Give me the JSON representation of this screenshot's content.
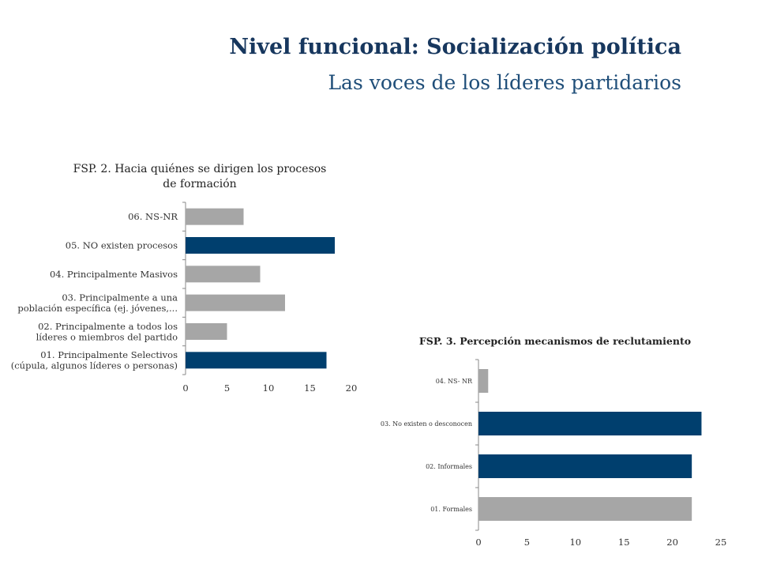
{
  "page": {
    "title": "Nivel funcional: Socialización política",
    "subtitle": "Las voces de los líderes partidarios"
  },
  "colors": {
    "highlight": "#003f6e",
    "normal": "#a6a6a6",
    "title": "#17375e"
  },
  "chart_data": [
    {
      "type": "bar",
      "orientation": "horizontal",
      "title": "FSP. 2.  Hacia quiénes se dirigen los procesos de formación",
      "title_lines": [
        "FSP. 2.  Hacia quiénes se dirigen los procesos",
        "de formación"
      ],
      "categories": [
        [
          "06. NS-NR"
        ],
        [
          "05. NO existen procesos"
        ],
        [
          "04. Principalmente Masivos"
        ],
        [
          "03. Principalmente a una",
          "población específica (ej. jóvenes,..."
        ],
        [
          "02. Principalmente a todos los",
          "líderes o miembros del partido"
        ],
        [
          "01. Principalmente Selectivos",
          "(cúpula, algunos líderes o personas)"
        ]
      ],
      "values": [
        7,
        18,
        9,
        12,
        5,
        17
      ],
      "highlight": [
        false,
        true,
        false,
        false,
        false,
        true
      ],
      "xlim": [
        0,
        20
      ],
      "xticks": [
        0,
        5,
        10,
        15,
        20
      ],
      "grid": false
    },
    {
      "type": "bar",
      "orientation": "horizontal",
      "title": "FSP. 3. Percepción mecanismos de reclutamiento",
      "title_lines": [
        "FSP. 3. Percepción mecanismos de reclutamiento"
      ],
      "categories": [
        [
          "04. NS- NR"
        ],
        [
          "03. No existen o desconocen"
        ],
        [
          "02. Informales"
        ],
        [
          "01. Formales"
        ]
      ],
      "values": [
        1,
        23,
        22,
        22
      ],
      "highlight": [
        false,
        true,
        true,
        false
      ],
      "xlim": [
        0,
        25
      ],
      "xticks": [
        0,
        5,
        10,
        15,
        20,
        25
      ],
      "grid": false
    }
  ]
}
